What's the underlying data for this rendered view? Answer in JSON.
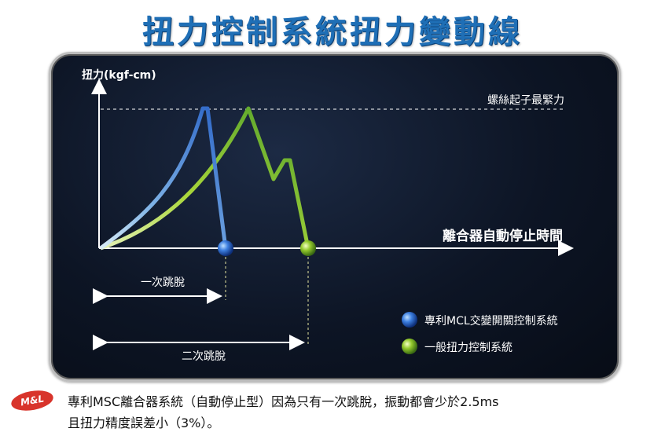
{
  "title": "扭力控制系統扭力變動線",
  "chart_data": {
    "type": "line",
    "ylabel": "扭力(kgf-cm)",
    "xlabel": "離合器自動停止時間",
    "reference_line_label": "螺絲起子最緊力",
    "series": [
      {
        "name": "專利MCL交變開關控制系統",
        "color": "#2f6fd0",
        "note": "一次跳脫"
      },
      {
        "name": "一般扭力控制系統",
        "color": "#7dc232",
        "note": "二次跳脫"
      }
    ],
    "interval_labels": [
      "一次跳脫",
      "二次跳脫"
    ]
  },
  "footer": {
    "badge": "M&L",
    "line1": "專利MSC離合器系統（自動停止型）因為只有一次跳脫，振動都會少於2.5ms",
    "line2": "且扭力精度誤差小（3%）。"
  }
}
